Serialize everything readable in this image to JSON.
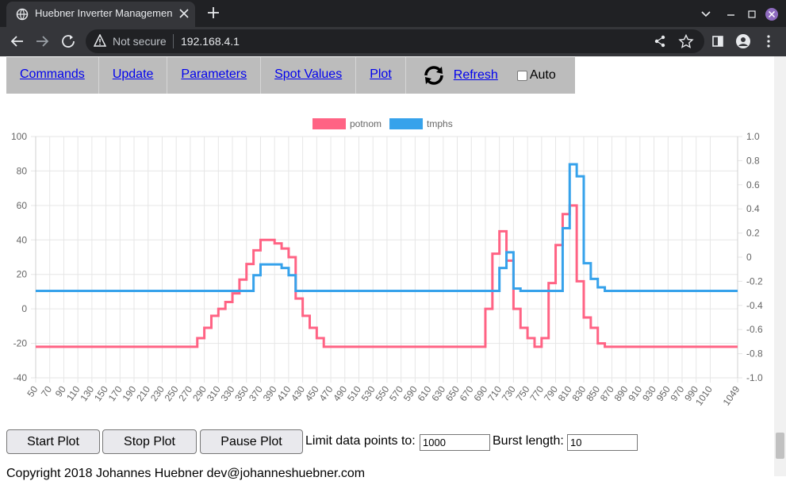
{
  "browser": {
    "tab_title": "Huebner Inverter Managemen",
    "security": "Not secure",
    "url": "192.168.4.1"
  },
  "nav": [
    "Commands",
    "Update",
    "Parameters",
    "Spot Values",
    "Plot",
    "Refresh",
    "Auto"
  ],
  "chart_data": {
    "type": "line",
    "stepped": true,
    "x": [
      50,
      270,
      280,
      290,
      300,
      310,
      320,
      330,
      340,
      350,
      360,
      370,
      380,
      390,
      400,
      410,
      420,
      430,
      440,
      450,
      460,
      680,
      690,
      700,
      710,
      720,
      730,
      740,
      750,
      760,
      770,
      780,
      790,
      800,
      810,
      820,
      830,
      840,
      850,
      860,
      870,
      1049
    ],
    "series": [
      {
        "name": "potnom",
        "color": "#ff6384",
        "axis": "y",
        "values": [
          -22,
          -22,
          -17,
          -11,
          -4,
          0,
          4,
          9,
          17,
          26,
          34,
          40,
          40,
          38,
          35,
          30,
          6,
          -4,
          -11,
          -17,
          -22,
          -22,
          0,
          32,
          45,
          28,
          0,
          -11,
          -17,
          -22,
          -17,
          15,
          37,
          55,
          60,
          16,
          -5,
          -11,
          -20,
          -22,
          -22,
          -22
        ]
      },
      {
        "name": "tmphs",
        "color": "#36a2eb",
        "axis": "y2",
        "values": [
          -0.28,
          -0.28,
          -0.28,
          -0.28,
          -0.28,
          -0.28,
          -0.28,
          -0.28,
          -0.28,
          -0.28,
          -0.15,
          -0.06,
          -0.06,
          -0.06,
          -0.09,
          -0.15,
          -0.28,
          -0.28,
          -0.28,
          -0.28,
          -0.28,
          -0.28,
          -0.28,
          -0.28,
          -0.09,
          0.04,
          -0.26,
          -0.28,
          -0.28,
          -0.28,
          -0.28,
          -0.28,
          -0.28,
          0.24,
          0.77,
          0.67,
          -0.05,
          -0.18,
          -0.25,
          -0.28,
          -0.28,
          -0.28
        ]
      }
    ],
    "xlim": [
      50,
      1049
    ],
    "xticks": [
      50,
      70,
      90,
      110,
      130,
      150,
      170,
      190,
      210,
      230,
      250,
      270,
      290,
      310,
      330,
      350,
      370,
      390,
      410,
      430,
      450,
      470,
      490,
      510,
      530,
      550,
      570,
      590,
      610,
      630,
      650,
      670,
      690,
      710,
      730,
      750,
      770,
      790,
      810,
      830,
      850,
      870,
      890,
      910,
      930,
      950,
      970,
      990,
      1010,
      1049
    ],
    "ylim": [
      -40,
      100
    ],
    "yticks": [
      -40,
      -20,
      0,
      20,
      40,
      60,
      80,
      100
    ],
    "y2lim": [
      -1,
      1
    ],
    "y2ticks": [
      {
        "value": -1,
        "label": "-1.0"
      },
      -0.8,
      -0.6,
      -0.4,
      -0.2,
      0,
      0.2,
      0.4,
      0.6,
      0.8,
      {
        "value": 1,
        "label": "1.0"
      }
    ],
    "grid": true,
    "legend": "top"
  },
  "controls": {
    "buttons": [
      "Start Plot",
      "Stop Plot",
      "Pause Plot"
    ],
    "limit_label": "Limit data points to:",
    "limit_value": 1000,
    "burst_label": "Burst length:",
    "burst_value": 10
  },
  "footer": "Copyright 2018 Johannes Huebner dev@johanneshuebner.com"
}
